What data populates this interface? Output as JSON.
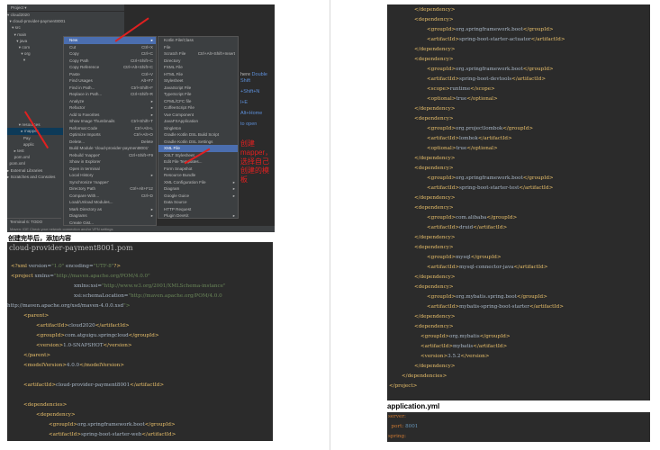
{
  "ide": {
    "project_header": "Project ▾",
    "tree": [
      "▾ cloud2020",
      "  ▾ cloud-provider-payment8001",
      "    ▾ src",
      "      ▾ main",
      "        ▾ java",
      "          ▾ com",
      "            ▾ org",
      "              ▾ ",
      "",
      "",
      "",
      "",
      "",
      "",
      "",
      "",
      "",
      "          ▾ resources",
      "            ▸ mapper",
      "              Pay",
      "              applic",
      "      ▸ test",
      "      pom.xml",
      "  pom.xml",
      "▸ External Libraries",
      "▸ Scratches and Consoles"
    ],
    "bottom_tabs": "Terminal    6: TODO",
    "context_menu": [
      [
        "New",
        "▸"
      ],
      [
        "Cut",
        "Ctrl+X"
      ],
      [
        "Copy",
        "Ctrl+C"
      ],
      [
        "Copy Path",
        "Ctrl+Shift+C"
      ],
      [
        "Copy Reference",
        "Ctrl+Alt+Shift+C"
      ],
      [
        "Paste",
        "Ctrl+V"
      ],
      [
        "Find Usages",
        "Alt+F7"
      ],
      [
        "Find in Path...",
        "Ctrl+Shift+F"
      ],
      [
        "Replace in Path...",
        "Ctrl+Shift+R"
      ],
      [
        "Analyze",
        "▸"
      ],
      [
        "Refactor",
        "▸"
      ],
      [
        "Add to Favorites",
        "▸"
      ],
      [
        "Show Image Thumbnails",
        "Ctrl+Shift+T"
      ],
      [
        "Reformat Code",
        "Ctrl+Alt+L"
      ],
      [
        "Optimize Imports",
        "Ctrl+Alt+O"
      ],
      [
        "Delete...",
        "Delete"
      ],
      [
        "Build Module 'cloud-provider-payment8001'",
        ""
      ],
      [
        "Rebuild 'mapper'",
        "Ctrl+Shift+F9"
      ],
      [
        "Show in Explorer",
        ""
      ],
      [
        "Open in terminal",
        ""
      ],
      [
        "Local History",
        "▸"
      ],
      [
        "Synchronize 'mapper'",
        ""
      ],
      [
        "Directory Path",
        "Ctrl+Alt+F12"
      ],
      [
        "Compare With...",
        "Ctrl+D"
      ],
      [
        "Load/Unload Modules...",
        ""
      ],
      [
        "Mark Directory as",
        "▸"
      ],
      [
        "Diagrams",
        "▸"
      ],
      [
        "Create Gist...",
        ""
      ]
    ],
    "submenu": [
      [
        "Kotlin File/Class",
        ""
      ],
      [
        "File",
        ""
      ],
      [
        "Scratch File",
        "Ctrl+Alt+Shift+Insert"
      ],
      [
        "Directory",
        ""
      ],
      [
        "FXML File",
        ""
      ],
      [
        "HTML File",
        ""
      ],
      [
        "Stylesheet",
        ""
      ],
      [
        "JavaScript File",
        ""
      ],
      [
        "TypeScript File",
        ""
      ],
      [
        "CFML/CFC file",
        ""
      ],
      [
        "CoffeeScript File",
        ""
      ],
      [
        "Vue Component",
        ""
      ],
      [
        "JavaFXApplication",
        ""
      ],
      [
        "Singleton",
        ""
      ],
      [
        "Gradle Kotlin DSL Build Script",
        ""
      ],
      [
        "Gradle Kotlin DSL Settings",
        ""
      ],
      [
        "XML File",
        ""
      ],
      [
        "XSLT Stylesheet",
        ""
      ],
      [
        "Edit File Templates...",
        ""
      ],
      [
        "Form Snapshot",
        ""
      ],
      [
        "Resource Bundle",
        ""
      ],
      [
        "XML Configuration File",
        "▸"
      ],
      [
        "Diagram",
        "▸"
      ],
      [
        "Google Guice",
        "▸"
      ],
      [
        "Data Source",
        ""
      ],
      [
        "HTTP Request",
        ""
      ],
      [
        "Plugin DevKit",
        "▸"
      ]
    ],
    "editor_hints": [
      [
        "here ",
        "Double Shift"
      ],
      [
        "",
        "+Shift+N"
      ],
      [
        "",
        "l+E"
      ],
      [
        "",
        "Alt+Home"
      ],
      [
        "",
        "to open"
      ]
    ],
    "annotation": "创建mapper，选择自己创建的模板",
    "status_text": "Maven: IDE Check your network connection and/or VPN settings",
    "accent": "#4b6eaf",
    "annotation_color": "#e02020"
  },
  "caption1": "创建完毕后，添加内容",
  "pom_title": "cloud-provider-payment8001.pom",
  "pom_left": [
    {
      "row": 0,
      "indent": 0,
      "text": "<?xml version=\"1.0\" encoding=\"UTF-8\"?>"
    },
    {
      "row": 1,
      "indent": 0,
      "text": "<project xmlns=\"http://maven.apache.org/POM/4.0.0\""
    },
    {
      "row": 2,
      "indent": 5,
      "text": "xmlns:xsi=\"http://www.w3.org/2001/XMLSchema-instance\""
    },
    {
      "row": 3,
      "indent": 5,
      "text": "xsi:schemaLocation=\"http://maven.apache.org/POM/4.0.0"
    },
    {
      "row": 4,
      "indent": -1,
      "text": "http://maven.apache.org/xsd/maven-4.0.0.xsd\">"
    },
    {
      "row": 5,
      "indent": 1,
      "text": "<parent>"
    },
    {
      "row": 6,
      "indent": 2,
      "text": "<artifactId>cloud2020</artifactId>"
    },
    {
      "row": 7,
      "indent": 2,
      "text": "<groupId>com.atguigu.springcloud</groupId>"
    },
    {
      "row": 8,
      "indent": 2,
      "text": "<version>1.0-SNAPSHOT</version>"
    },
    {
      "row": 9,
      "indent": 1,
      "text": "</parent>"
    },
    {
      "row": 10,
      "indent": 1,
      "text": "<modelVersion>4.0.0</modelVersion>"
    },
    {
      "row": 12,
      "indent": 1,
      "text": "<artifactId>cloud-provider-payment8001</artifactId>"
    },
    {
      "row": 14,
      "indent": 1,
      "text": "<dependencies>"
    },
    {
      "row": 15,
      "indent": 2,
      "text": "<dependency>"
    },
    {
      "row": 16,
      "indent": 3,
      "text": "<groupId>org.springframework.boot</groupId>"
    },
    {
      "row": 17,
      "indent": 3,
      "text": "<artifactId>spring-boot-starter-web</artifactId>"
    }
  ],
  "pom_right": [
    {
      "indent": 2,
      "text": "</dependency>"
    },
    {
      "indent": 2,
      "text": "<dependency>"
    },
    {
      "indent": 3,
      "text": "<groupId>org.springframework.boot</groupId>"
    },
    {
      "indent": 3,
      "text": "<artifactId>spring-boot-starter-actuator</artifactId>"
    },
    {
      "indent": 2,
      "text": "</dependency>"
    },
    {
      "indent": 2,
      "text": "<dependency>"
    },
    {
      "indent": 3,
      "text": "<groupId>org.springframework.boot</groupId>"
    },
    {
      "indent": 3,
      "text": "<artifactId>spring-boot-devtools</artifactId>"
    },
    {
      "indent": 3,
      "text": "<scope>runtime</scope>"
    },
    {
      "indent": 3,
      "text": "<optional>true</optional>"
    },
    {
      "indent": 2,
      "text": "</dependency>"
    },
    {
      "indent": 2,
      "text": "<dependency>"
    },
    {
      "indent": 3,
      "text": "<groupId>org.projectlombok</groupId>"
    },
    {
      "indent": 3,
      "text": "<artifactId>lombok</artifactId>"
    },
    {
      "indent": 3,
      "text": "<optional>true</optional>"
    },
    {
      "indent": 2,
      "text": "</dependency>"
    },
    {
      "indent": 2,
      "text": "<dependency>"
    },
    {
      "indent": 3,
      "text": "<groupId>org.springframework.boot</groupId>"
    },
    {
      "indent": 3,
      "text": "<artifactId>spring-boot-starter-test</artifactId>"
    },
    {
      "indent": 2,
      "text": "</dependency>"
    },
    {
      "indent": 2,
      "text": "<dependency>"
    },
    {
      "indent": 3,
      "text": "<groupId>com.alibaba</groupId>"
    },
    {
      "indent": 3,
      "text": "<artifactId>druid</artifactId>"
    },
    {
      "indent": 2,
      "text": "</dependency>"
    },
    {
      "indent": 2,
      "text": "<dependency>"
    },
    {
      "indent": 3,
      "text": "<groupId>mysql</groupId>"
    },
    {
      "indent": 3,
      "text": "<artifactId>mysql-connector-java</artifactId>"
    },
    {
      "indent": 2,
      "text": "</dependency>"
    },
    {
      "indent": 2,
      "text": "<dependency>"
    },
    {
      "indent": 3,
      "text": "<groupId>org.mybatis.spring.boot</groupId>"
    },
    {
      "indent": 3,
      "text": "<artifactId>mybatis-spring-boot-starter</artifactId>"
    },
    {
      "indent": 2,
      "text": "</dependency>"
    },
    {
      "indent": 2,
      "text": "<dependency>"
    },
    {
      "indent": 2.5,
      "text": "<groupId>org.mybatis</groupId>"
    },
    {
      "indent": 2.5,
      "text": "<artifactId>mybatis</artifactId>"
    },
    {
      "indent": 2.5,
      "text": "<version>3.5.2</version>"
    },
    {
      "indent": 2,
      "text": "</dependency>"
    },
    {
      "indent": 1,
      "text": "</dependencies>"
    },
    {
      "indent": 0,
      "text": "</project>"
    }
  ],
  "caption2": "application.yml",
  "yml": [
    {
      "key": "server:",
      "value": ""
    },
    {
      "key": "  port: ",
      "value": "8001"
    },
    {
      "key": "spring:",
      "value": ""
    }
  ]
}
